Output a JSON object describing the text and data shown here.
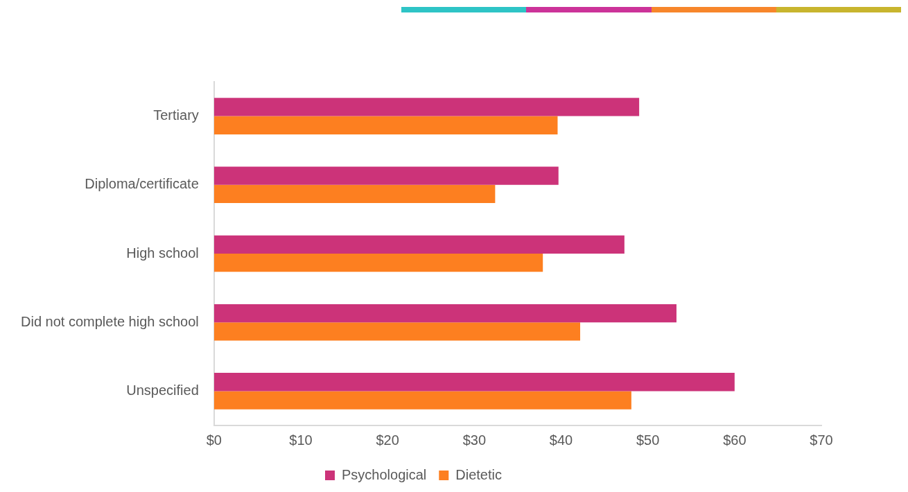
{
  "chart_data": {
    "type": "bar",
    "orientation": "horizontal",
    "categories": [
      "Tertiary",
      "Diploma/certificate",
      "High school",
      "Did not complete high school",
      "Unspecified"
    ],
    "series": [
      {
        "name": "Psychological",
        "color": "#cc3379",
        "values": [
          49,
          39.7,
          47.3,
          53.3,
          60
        ]
      },
      {
        "name": "Dietetic",
        "color": "#fd7f20",
        "values": [
          39.6,
          32.4,
          37.9,
          42.2,
          48.1
        ]
      }
    ],
    "xlim": [
      0,
      70
    ],
    "xticks": [
      {
        "value": 0,
        "label": "$0"
      },
      {
        "value": 10,
        "label": "$10"
      },
      {
        "value": 20,
        "label": "$20"
      },
      {
        "value": 30,
        "label": "$30"
      },
      {
        "value": 40,
        "label": "$40"
      },
      {
        "value": 50,
        "label": "$50"
      },
      {
        "value": 60,
        "label": "$60"
      },
      {
        "value": 70,
        "label": "$70"
      }
    ],
    "grid": false,
    "legend": "bottom"
  }
}
